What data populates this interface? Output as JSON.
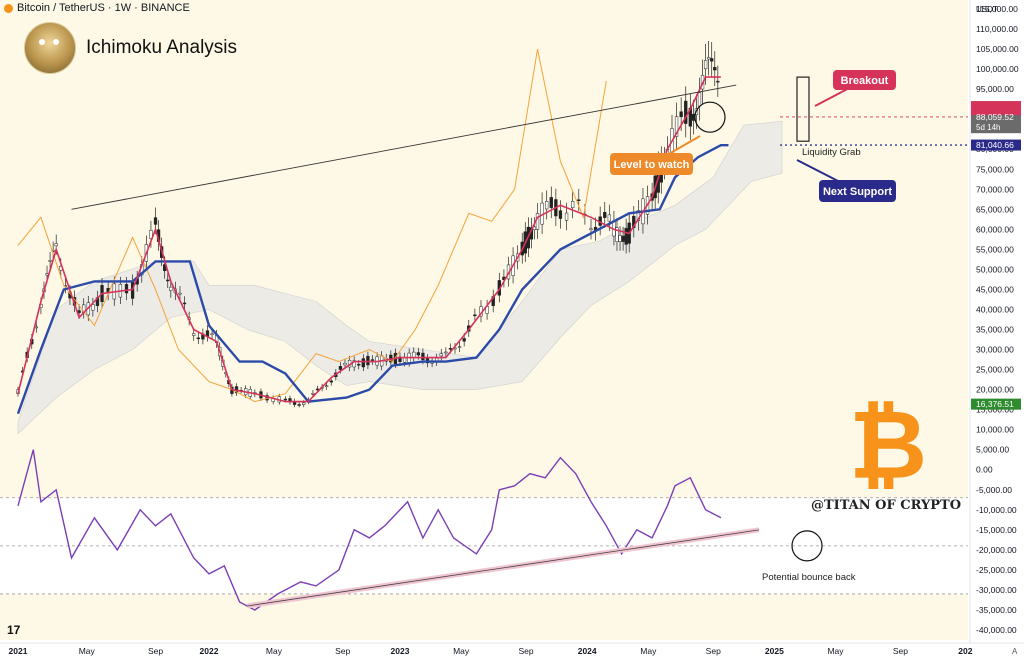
{
  "header": {
    "symbol": "Bitcoin / TetherUS · 1W · BINANCE",
    "currency": "USDT"
  },
  "title": "Ichimoku Analysis",
  "watermark": "@TITAN OF CRYPTO",
  "colors": {
    "tenkan": "#d6335b",
    "kijun": "#2c4aa8",
    "chikou": "#f5a23a",
    "cloud": "#e6e6e6",
    "indicator": "#7b3fb5",
    "bg_upper": "#fdf9e6",
    "bitcoin": "#f7931a"
  },
  "callouts": {
    "breakout": "Breakout",
    "level_to_watch": "Level to watch",
    "next_support": "Next Support",
    "liquidity_grab": "Liquidity Grab",
    "potential_bounce": "Potential bounce back"
  },
  "price_tags": {
    "current": "88,059.52",
    "countdown": "5d 14h",
    "support": "81,040.66",
    "osc": "16,376.51"
  },
  "chart_data": {
    "type": "candlestick",
    "x_ticks": [
      "2021",
      "May",
      "Sep",
      "2022",
      "May",
      "Sep",
      "2023",
      "May",
      "Sep",
      "2024",
      "May",
      "Sep",
      "2025",
      "May",
      "Sep",
      "202"
    ],
    "y_ticks": [
      "115,000.00",
      "110,000.00",
      "105,000.00",
      "100,000.00",
      "95,000.00",
      "90,000.00",
      "85,000.00",
      "80,000.00",
      "75,000.00",
      "70,000.00",
      "65,000.00",
      "60,000.00",
      "55,000.00",
      "50,000.00",
      "45,000.00",
      "40,000.00",
      "35,000.00",
      "30,000.00",
      "25,000.00",
      "20,000.00",
      "15,000.00",
      "10,000.00",
      "5,000.00",
      "0.00",
      "-5,000.00",
      "-10,000.00",
      "-15,000.00",
      "-20,000.00",
      "-25,000.00",
      "-30,000.00",
      "-35,000.00",
      "-40,000.00"
    ],
    "y_range": [
      -40000,
      115000
    ],
    "tenkan": [
      [
        0,
        19000
      ],
      [
        0.06,
        42000
      ],
      [
        0.1,
        55000
      ],
      [
        0.16,
        38000
      ],
      [
        0.22,
        44000
      ],
      [
        0.3,
        45000
      ],
      [
        0.36,
        60000
      ],
      [
        0.4,
        47000
      ],
      [
        0.46,
        35000
      ],
      [
        0.52,
        32000
      ],
      [
        0.56,
        20000
      ],
      [
        0.62,
        19000
      ],
      [
        0.7,
        17000
      ],
      [
        0.76,
        17000
      ],
      [
        0.82,
        23000
      ],
      [
        0.88,
        27000
      ],
      [
        0.94,
        27000
      ],
      [
        1.0,
        28000
      ],
      [
        1.06,
        28000
      ],
      [
        1.12,
        28000
      ],
      [
        1.18,
        35000
      ],
      [
        1.26,
        45000
      ],
      [
        1.32,
        55000
      ],
      [
        1.36,
        63000
      ],
      [
        1.42,
        66000
      ],
      [
        1.5,
        63000
      ],
      [
        1.56,
        60000
      ],
      [
        1.6,
        59000
      ],
      [
        1.66,
        68000
      ],
      [
        1.7,
        80000
      ],
      [
        1.76,
        90000
      ],
      [
        1.8,
        98000
      ],
      [
        1.84,
        98000
      ]
    ],
    "kijun": [
      [
        0,
        14000
      ],
      [
        0.06,
        30000
      ],
      [
        0.12,
        45000
      ],
      [
        0.2,
        47000
      ],
      [
        0.3,
        47000
      ],
      [
        0.36,
        52000
      ],
      [
        0.45,
        52000
      ],
      [
        0.5,
        36000
      ],
      [
        0.58,
        27000
      ],
      [
        0.64,
        27000
      ],
      [
        0.7,
        24000
      ],
      [
        0.76,
        17000
      ],
      [
        0.86,
        18000
      ],
      [
        0.92,
        20000
      ],
      [
        0.98,
        26000
      ],
      [
        1.06,
        27000
      ],
      [
        1.12,
        27000
      ],
      [
        1.2,
        28000
      ],
      [
        1.26,
        35000
      ],
      [
        1.32,
        45000
      ],
      [
        1.42,
        55000
      ],
      [
        1.52,
        60000
      ],
      [
        1.6,
        64000
      ],
      [
        1.68,
        65000
      ],
      [
        1.72,
        73000
      ],
      [
        1.78,
        78000
      ],
      [
        1.84,
        81000
      ],
      [
        1.86,
        81000
      ]
    ],
    "chikou": [
      [
        0,
        56000
      ],
      [
        0.06,
        63000
      ],
      [
        0.12,
        46000
      ],
      [
        0.2,
        36000
      ],
      [
        0.3,
        58000
      ],
      [
        0.36,
        45000
      ],
      [
        0.42,
        30000
      ],
      [
        0.5,
        22000
      ],
      [
        0.56,
        20000
      ],
      [
        0.62,
        17000
      ],
      [
        0.7,
        19000
      ],
      [
        0.78,
        29000
      ],
      [
        0.84,
        27000
      ],
      [
        0.92,
        30000
      ],
      [
        0.98,
        27000
      ],
      [
        1.04,
        35000
      ],
      [
        1.1,
        46000
      ],
      [
        1.18,
        64000
      ],
      [
        1.24,
        62000
      ],
      [
        1.3,
        70000
      ],
      [
        1.36,
        105000
      ],
      [
        1.42,
        77000
      ],
      [
        1.48,
        63000
      ],
      [
        1.54,
        97000
      ]
    ],
    "oscillator": [
      [
        0,
        -9000
      ],
      [
        0.02,
        -2000
      ],
      [
        0.04,
        5000
      ],
      [
        0.06,
        -8000
      ],
      [
        0.1,
        -5000
      ],
      [
        0.14,
        -22000
      ],
      [
        0.2,
        -12000
      ],
      [
        0.26,
        -20000
      ],
      [
        0.32,
        -10000
      ],
      [
        0.36,
        -14000
      ],
      [
        0.4,
        -11000
      ],
      [
        0.46,
        -22000
      ],
      [
        0.5,
        -26000
      ],
      [
        0.54,
        -24000
      ],
      [
        0.58,
        -33000
      ],
      [
        0.62,
        -35000
      ],
      [
        0.68,
        -31000
      ],
      [
        0.74,
        -28000
      ],
      [
        0.78,
        -29000
      ],
      [
        0.84,
        -25000
      ],
      [
        0.88,
        -15000
      ],
      [
        0.92,
        -17000
      ],
      [
        0.96,
        -14000
      ],
      [
        1.02,
        -8000
      ],
      [
        1.06,
        -17000
      ],
      [
        1.1,
        -10000
      ],
      [
        1.14,
        -17000
      ],
      [
        1.2,
        -21000
      ],
      [
        1.24,
        -15000
      ],
      [
        1.26,
        -5000
      ],
      [
        1.3,
        -4000
      ],
      [
        1.34,
        -1000
      ],
      [
        1.38,
        -2000
      ],
      [
        1.42,
        3000
      ],
      [
        1.46,
        -1000
      ],
      [
        1.5,
        -8000
      ],
      [
        1.54,
        -14000
      ],
      [
        1.58,
        -21000
      ],
      [
        1.62,
        -15000
      ],
      [
        1.66,
        -17000
      ],
      [
        1.7,
        -9000
      ],
      [
        1.72,
        -4000
      ],
      [
        1.76,
        -2000
      ],
      [
        1.8,
        -10000
      ],
      [
        1.84,
        -12000
      ]
    ],
    "oscillator_trendline": [
      [
        0.6,
        -34000
      ],
      [
        1.94,
        -15000
      ]
    ],
    "resistance_line": [
      [
        0.14,
        65000
      ],
      [
        1.88,
        96000
      ]
    ],
    "hlines": [
      -7000,
      -19000,
      -31000
    ]
  }
}
